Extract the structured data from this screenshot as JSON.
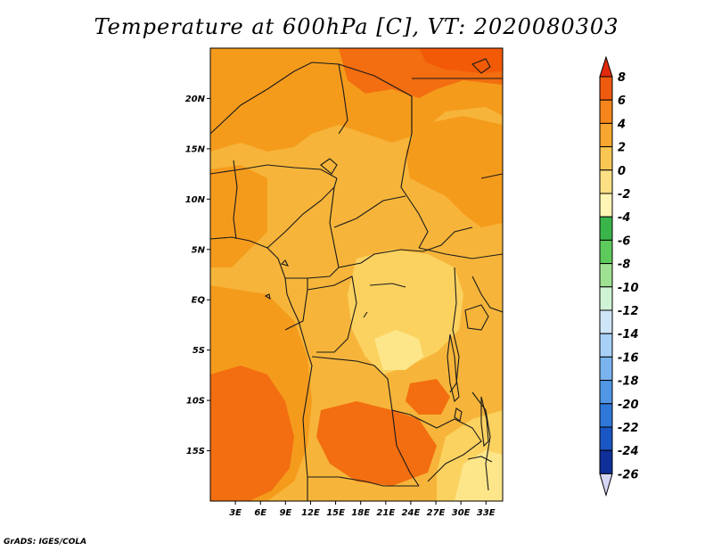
{
  "title": "Temperature at 600hPa [C], VT: 2020080303",
  "credit": "GrADS: IGES/COLA",
  "map": {
    "projection": "latlon",
    "lon_range": [
      0,
      35
    ],
    "lat_range": [
      -20,
      25
    ],
    "y_ticks": [
      {
        "lat": 20,
        "label": "20N"
      },
      {
        "lat": 15,
        "label": "15N"
      },
      {
        "lat": 10,
        "label": "10N"
      },
      {
        "lat": 5,
        "label": "5N"
      },
      {
        "lat": 0,
        "label": "EQ"
      },
      {
        "lat": -5,
        "label": "5S"
      },
      {
        "lat": -10,
        "label": "10S"
      },
      {
        "lat": -15,
        "label": "15S"
      }
    ],
    "x_ticks": [
      {
        "lon": 3,
        "label": "3E"
      },
      {
        "lon": 6,
        "label": "6E"
      },
      {
        "lon": 9,
        "label": "9E"
      },
      {
        "lon": 12,
        "label": "12E"
      },
      {
        "lon": 15,
        "label": "15E"
      },
      {
        "lon": 18,
        "label": "18E"
      },
      {
        "lon": 21,
        "label": "21E"
      },
      {
        "lon": 24,
        "label": "24E"
      },
      {
        "lon": 27,
        "label": "27E"
      },
      {
        "lon": 30,
        "label": "30E"
      },
      {
        "lon": 33,
        "label": "33E"
      }
    ],
    "field_colors": {
      "base": "#f6b53a",
      "warm": "#f59b1c",
      "hot": "#f26e10",
      "hotter": "#f25a08",
      "mild": "#fbd260",
      "cool": "#fde68a"
    },
    "border_color": "#1a1a1a"
  },
  "colorbar": {
    "labels": [
      "8",
      "6",
      "4",
      "2",
      "0",
      "-2",
      "-4",
      "-6",
      "-8",
      "-10",
      "-12",
      "-14",
      "-16",
      "-18",
      "-20",
      "-22",
      "-24",
      "-26"
    ],
    "colors": [
      "#e12a0d",
      "#f05a0e",
      "#f6861c",
      "#f8a630",
      "#f9c553",
      "#fde083",
      "#fff5b4",
      "#3ab54a",
      "#5fca5c",
      "#9fe193",
      "#d0f3d5",
      "#cfe6f9",
      "#a7d0f6",
      "#7ab4ef",
      "#5197e6",
      "#2f78da",
      "#1a56c4",
      "#0f2f9a",
      "#0a0a6e",
      "#d6d6f5"
    ],
    "top_cap_color": "#e12a0d",
    "bottom_cap_color": "#d6d6f5"
  }
}
